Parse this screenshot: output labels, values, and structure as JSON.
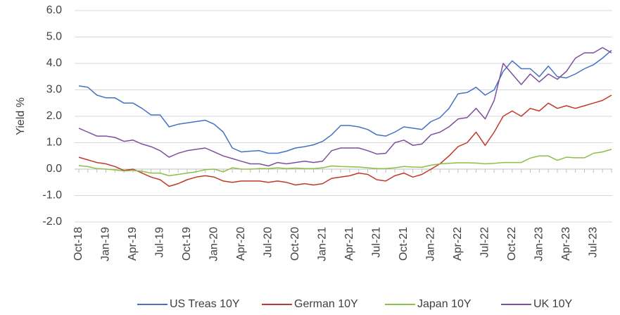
{
  "chart_data": {
    "type": "line",
    "y_label": "Yield %",
    "categories": [
      "Oct-18",
      null,
      null,
      "Jan-19",
      null,
      null,
      "Apr-19",
      null,
      null,
      "Jul-19",
      null,
      null,
      "Oct-19",
      null,
      null,
      "Jan-20",
      null,
      null,
      "Apr-20",
      null,
      null,
      "Jul-20",
      null,
      null,
      "Oct-20",
      null,
      null,
      "Jan-21",
      null,
      null,
      "Apr-21",
      null,
      null,
      "Jul-21",
      null,
      null,
      "Oct-21",
      null,
      null,
      "Jan-22",
      null,
      null,
      "Apr-22",
      null,
      null,
      "Jul-22",
      null,
      null,
      "Oct-22",
      null,
      null,
      "Jan-23",
      null,
      null,
      "Apr-23",
      null,
      null,
      "Jul-23",
      null,
      null
    ],
    "series": [
      {
        "name": "US Treas 10Y",
        "color": "#4472c4",
        "values": [
          3.15,
          3.1,
          2.8,
          2.7,
          2.7,
          2.5,
          2.5,
          2.3,
          2.05,
          2.05,
          1.6,
          1.7,
          1.75,
          1.8,
          1.85,
          1.7,
          1.4,
          0.8,
          0.65,
          0.68,
          0.7,
          0.6,
          0.6,
          0.68,
          0.8,
          0.85,
          0.92,
          1.05,
          1.3,
          1.65,
          1.65,
          1.6,
          1.5,
          1.3,
          1.25,
          1.4,
          1.6,
          1.55,
          1.5,
          1.8,
          1.95,
          2.3,
          2.85,
          2.9,
          3.1,
          2.8,
          3.0,
          3.7,
          4.1,
          3.8,
          3.8,
          3.5,
          3.9,
          3.5,
          3.45,
          3.6,
          3.8,
          3.95,
          4.2,
          4.5
        ]
      },
      {
        "name": "German 10Y",
        "color": "#c0392b",
        "values": [
          0.45,
          0.35,
          0.25,
          0.2,
          0.1,
          -0.05,
          0.0,
          -0.15,
          -0.3,
          -0.4,
          -0.65,
          -0.55,
          -0.4,
          -0.3,
          -0.25,
          -0.3,
          -0.45,
          -0.5,
          -0.45,
          -0.45,
          -0.45,
          -0.5,
          -0.45,
          -0.5,
          -0.6,
          -0.55,
          -0.6,
          -0.55,
          -0.35,
          -0.3,
          -0.25,
          -0.15,
          -0.2,
          -0.4,
          -0.45,
          -0.25,
          -0.15,
          -0.3,
          -0.2,
          0.0,
          0.2,
          0.5,
          0.85,
          1.0,
          1.4,
          0.9,
          1.4,
          2.0,
          2.2,
          2.0,
          2.3,
          2.2,
          2.5,
          2.3,
          2.4,
          2.3,
          2.4,
          2.5,
          2.6,
          2.8
        ]
      },
      {
        "name": "Japan 10Y",
        "color": "#8fbd4a",
        "values": [
          0.13,
          0.1,
          0.02,
          0.0,
          -0.03,
          -0.07,
          -0.05,
          -0.08,
          -0.15,
          -0.15,
          -0.25,
          -0.2,
          -0.15,
          -0.1,
          -0.02,
          0.0,
          -0.1,
          0.05,
          0.0,
          0.0,
          0.02,
          0.02,
          0.05,
          0.02,
          0.04,
          0.02,
          0.02,
          0.05,
          0.12,
          0.1,
          0.09,
          0.08,
          0.05,
          0.02,
          0.02,
          0.05,
          0.1,
          0.08,
          0.07,
          0.15,
          0.2,
          0.22,
          0.24,
          0.24,
          0.23,
          0.2,
          0.22,
          0.25,
          0.25,
          0.25,
          0.42,
          0.5,
          0.5,
          0.33,
          0.45,
          0.43,
          0.43,
          0.6,
          0.65,
          0.75
        ]
      },
      {
        "name": "UK 10Y",
        "color": "#7d4f9e",
        "values": [
          1.55,
          1.4,
          1.25,
          1.25,
          1.2,
          1.05,
          1.1,
          0.95,
          0.85,
          0.7,
          0.45,
          0.6,
          0.7,
          0.75,
          0.8,
          0.65,
          0.5,
          0.4,
          0.3,
          0.2,
          0.2,
          0.12,
          0.25,
          0.2,
          0.25,
          0.3,
          0.25,
          0.3,
          0.7,
          0.8,
          0.8,
          0.8,
          0.7,
          0.57,
          0.6,
          1.0,
          1.1,
          0.9,
          0.95,
          1.3,
          1.4,
          1.6,
          1.9,
          1.95,
          2.3,
          1.9,
          2.6,
          4.0,
          3.6,
          3.2,
          3.6,
          3.3,
          3.6,
          3.4,
          3.7,
          4.2,
          4.4,
          4.4,
          4.6,
          4.4
        ]
      }
    ],
    "ylim": [
      -2,
      6
    ],
    "yticks": [
      {
        "value": -2,
        "label": "-2.0"
      },
      {
        "value": -1,
        "label": "-1.0"
      },
      {
        "value": 0,
        "label": "0.0"
      },
      {
        "value": 1,
        "label": "1.0"
      },
      {
        "value": 2,
        "label": "2.0"
      },
      {
        "value": 3,
        "label": "3.0"
      },
      {
        "value": 4,
        "label": "4.0"
      },
      {
        "value": 5,
        "label": "5.0"
      },
      {
        "value": 6,
        "label": "6.0"
      }
    ],
    "grid": true,
    "legend": "bottom"
  }
}
